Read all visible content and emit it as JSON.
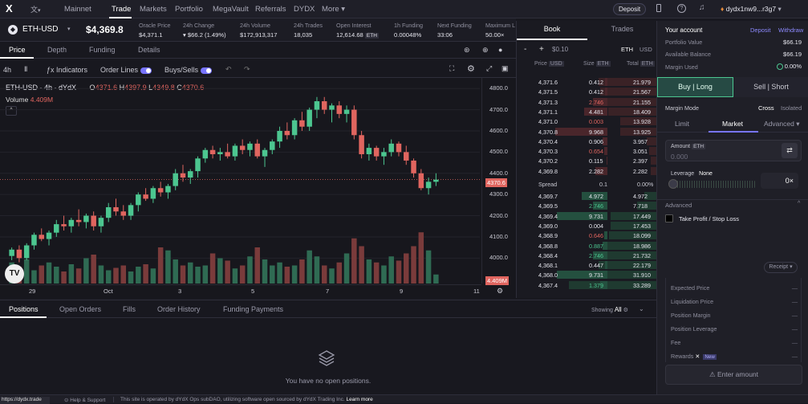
{
  "topbar": {
    "network": "Mainnet",
    "nav": [
      "Trade",
      "Markets",
      "Portfolio",
      "MegaVault",
      "Referrals",
      "DYDX",
      "More"
    ],
    "deposit": "Deposit",
    "account": "dydx1nw9...r3g7"
  },
  "market": {
    "symbol": "ETH-USD",
    "price": "$4,369.8",
    "stats": [
      {
        "label": "Oracle Price",
        "value": "$4,371.1"
      },
      {
        "label": "24h Change",
        "value": "▾ $66.2 (1.49%)"
      },
      {
        "label": "24h Volume",
        "value": "$172,913,317"
      },
      {
        "label": "24h Trades",
        "value": "18,035"
      },
      {
        "label": "Open Interest",
        "value": "12,614.68"
      },
      {
        "label": "1h Funding",
        "value": "0.00048%"
      },
      {
        "label": "Next Funding",
        "value": "33:06"
      },
      {
        "label": "Maximum L",
        "value": "50.00×"
      }
    ],
    "oi_unit": "ETH"
  },
  "chart_tabs": [
    "Price",
    "Depth",
    "Funding",
    "Details"
  ],
  "toolbar": {
    "interval": "4h",
    "indicators": "Indicators",
    "order_lines": "Order Lines",
    "buys_sells": "Buys/Sells"
  },
  "chart": {
    "title": "ETH-USD · 4h · dYdX",
    "o": "4371.6",
    "h": "4397.9",
    "l": "4349.8",
    "c": "4370.6",
    "volume_label": "Volume",
    "volume": "4.409M",
    "price_tag": "4370.6",
    "vol_tag": "4.409M",
    "y_ticks": [
      "4800.0",
      "4700.0",
      "4600.0",
      "4500.0",
      "4400.0",
      "4300.0",
      "4200.0",
      "4100.0",
      "4000.0"
    ],
    "x_ticks": [
      "29",
      "Oct",
      "3",
      "5",
      "7",
      "9",
      "11"
    ]
  },
  "chart_data": {
    "type": "candlestick",
    "x_label": "",
    "y_label": "",
    "ylim": [
      3880,
      4850
    ],
    "candles": [
      [
        4010,
        4050,
        3990,
        4040
      ],
      [
        4040,
        4060,
        3980,
        4000
      ],
      [
        4000,
        4070,
        3990,
        4060
      ],
      [
        4060,
        4120,
        4040,
        4110
      ],
      [
        4110,
        4140,
        4080,
        4090
      ],
      [
        4090,
        4130,
        4060,
        4120
      ],
      [
        4120,
        4180,
        4100,
        4160
      ],
      [
        4160,
        4200,
        4130,
        4150
      ],
      [
        4150,
        4190,
        4120,
        4180
      ],
      [
        4180,
        4230,
        4150,
        4170
      ],
      [
        4170,
        4210,
        4140,
        4200
      ],
      [
        4200,
        4220,
        4130,
        4150
      ],
      [
        4150,
        4200,
        4120,
        4190
      ],
      [
        4190,
        4260,
        4170,
        4240
      ],
      [
        4240,
        4280,
        4200,
        4220
      ],
      [
        4220,
        4250,
        4180,
        4200
      ],
      [
        4200,
        4260,
        4180,
        4250
      ],
      [
        4250,
        4310,
        4220,
        4300
      ],
      [
        4300,
        4330,
        4270,
        4280
      ],
      [
        4280,
        4340,
        4260,
        4330
      ],
      [
        4330,
        4360,
        4290,
        4310
      ],
      [
        4310,
        4350,
        4280,
        4340
      ],
      [
        4340,
        4420,
        4320,
        4400
      ],
      [
        4400,
        4440,
        4360,
        4380
      ],
      [
        4380,
        4420,
        4350,
        4410
      ],
      [
        4410,
        4480,
        4380,
        4470
      ],
      [
        4470,
        4520,
        4450,
        4510
      ],
      [
        4510,
        4530,
        4470,
        4490
      ],
      [
        4490,
        4520,
        4460,
        4500
      ],
      [
        4500,
        4540,
        4470,
        4480
      ],
      [
        4480,
        4540,
        4460,
        4530
      ],
      [
        4530,
        4560,
        4490,
        4510
      ],
      [
        4510,
        4550,
        4480,
        4540
      ],
      [
        4540,
        4560,
        4470,
        4480
      ],
      [
        4480,
        4520,
        4430,
        4510
      ],
      [
        4510,
        4560,
        4490,
        4550
      ],
      [
        4550,
        4620,
        4520,
        4600
      ],
      [
        4600,
        4640,
        4560,
        4580
      ],
      [
        4580,
        4660,
        4560,
        4650
      ],
      [
        4650,
        4690,
        4600,
        4620
      ],
      [
        4620,
        4710,
        4600,
        4700
      ],
      [
        4700,
        4760,
        4660,
        4740
      ],
      [
        4740,
        4760,
        4680,
        4700
      ],
      [
        4700,
        4730,
        4640,
        4720
      ],
      [
        4720,
        4740,
        4660,
        4680
      ],
      [
        4680,
        4720,
        4640,
        4700
      ],
      [
        4700,
        4720,
        4560,
        4580
      ],
      [
        4580,
        4600,
        4470,
        4490
      ],
      [
        4490,
        4540,
        4460,
        4520
      ],
      [
        4520,
        4530,
        4460,
        4480
      ],
      [
        4480,
        4520,
        4440,
        4500
      ],
      [
        4500,
        4560,
        4480,
        4540
      ],
      [
        4540,
        4550,
        4480,
        4500
      ],
      [
        4500,
        4530,
        4440,
        4460
      ],
      [
        4460,
        4470,
        4380,
        4400
      ],
      [
        4400,
        4420,
        4320,
        4330
      ],
      [
        4330,
        4380,
        4300,
        4360
      ],
      [
        4360,
        4400,
        4340,
        4370
      ]
    ],
    "volumes": [
      0.35,
      0.28,
      0.4,
      0.22,
      0.3,
      0.35,
      0.28,
      0.2,
      0.32,
      0.25,
      0.42,
      0.48,
      0.3,
      0.22,
      0.26,
      0.3,
      0.2,
      0.28,
      0.32,
      0.25,
      0.6,
      0.55,
      0.4,
      0.3,
      0.35,
      0.28,
      0.3,
      0.5,
      0.42,
      0.38,
      0.25,
      0.3,
      0.45,
      0.6,
      0.4,
      0.3,
      0.35,
      0.28,
      0.3,
      0.4,
      0.55,
      0.45,
      0.3,
      0.25,
      0.35,
      0.5,
      0.75,
      0.62,
      0.4,
      0.35,
      0.3,
      0.45,
      0.38,
      0.5,
      0.62,
      0.85,
      0.55,
      0.15
    ]
  },
  "book": {
    "tabs": [
      "Book",
      "Trades"
    ],
    "tick": "$0.10",
    "units": [
      "ETH",
      "USD"
    ],
    "headers": [
      "Price",
      "Size",
      "Total"
    ],
    "header_units": [
      "USD",
      "ETH",
      "ETH"
    ],
    "asks": [
      [
        "4,371.6",
        "0.412",
        "21.979"
      ],
      [
        "4,371.5",
        "0.412",
        "21.567"
      ],
      [
        "4,371.3",
        "2.746",
        "21.155"
      ],
      [
        "4,371.1",
        "4.481",
        "18.409"
      ],
      [
        "4,371.0",
        "0.003",
        "13.928"
      ],
      [
        "4,370.8",
        "9.968",
        "13.925"
      ],
      [
        "4,370.4",
        "0.906",
        "3.957"
      ],
      [
        "4,370.3",
        "0.654",
        "3.051"
      ],
      [
        "4,370.2",
        "0.115",
        "2.397"
      ],
      [
        "4,369.8",
        "2.282",
        "2.282"
      ]
    ],
    "spread": [
      "Spread",
      "0.1",
      "0.00%"
    ],
    "bids": [
      [
        "4,369.7",
        "4.972",
        "4.972"
      ],
      [
        "4,369.5",
        "2.746",
        "7.718"
      ],
      [
        "4,369.4",
        "9.731",
        "17.449"
      ],
      [
        "4,369.0",
        "0.004",
        "17.453"
      ],
      [
        "4,368.9",
        "0.646",
        "18.099"
      ],
      [
        "4,368.8",
        "0.887",
        "18.986"
      ],
      [
        "4,368.4",
        "2.746",
        "21.732"
      ],
      [
        "4,368.1",
        "0.447",
        "22.179"
      ],
      [
        "4,368.0",
        "9.731",
        "31.910"
      ],
      [
        "4,367.4",
        "1.379",
        "33.289"
      ]
    ]
  },
  "account": {
    "title": "Your account",
    "deposit": "Deposit",
    "withdraw": "Withdraw",
    "rows": [
      [
        "Portfolio Value",
        "$66.19"
      ],
      [
        "Available Balance",
        "$66.19"
      ],
      [
        "Margin Used",
        "0.00%"
      ]
    ]
  },
  "trade": {
    "buy": "Buy | Long",
    "sell": "Sell | Short",
    "margin_mode": "Margin Mode",
    "cross": "Cross",
    "isolated": "Isolated",
    "types": [
      "Limit",
      "Market",
      "Advanced"
    ],
    "amount_label": "Amount",
    "amount_unit": "ETH",
    "amount_placeholder": "0.000",
    "leverage": "Leverage",
    "leverage_val": "None",
    "leverage_x": "0×",
    "advanced": "Advanced",
    "tpsl": "Take Profit / Stop Loss",
    "receipt": "Receipt",
    "summary": [
      "Expected Price",
      "Liquidation Price",
      "Position Margin",
      "Position Leverage",
      "Fee",
      "Rewards"
    ],
    "rewards_badge": "New",
    "summary_value": "—",
    "enter": "Enter amount"
  },
  "bottom": {
    "tabs": [
      "Positions",
      "Open Orders",
      "Fills",
      "Order History",
      "Funding Payments"
    ],
    "showing": "Showing",
    "showing_val": "All",
    "empty": "You have no open positions."
  },
  "footer": {
    "url": "https://dydx.trade",
    "help": "Help & Support",
    "notice": "This site is operated by dYdX Ops subDAO, utilizing software open sourced by dYdX Trading Inc.",
    "learn": "Learn more"
  },
  "colors": {
    "green": "#4cc690",
    "red": "#e0655f",
    "accent": "#7774ff"
  }
}
